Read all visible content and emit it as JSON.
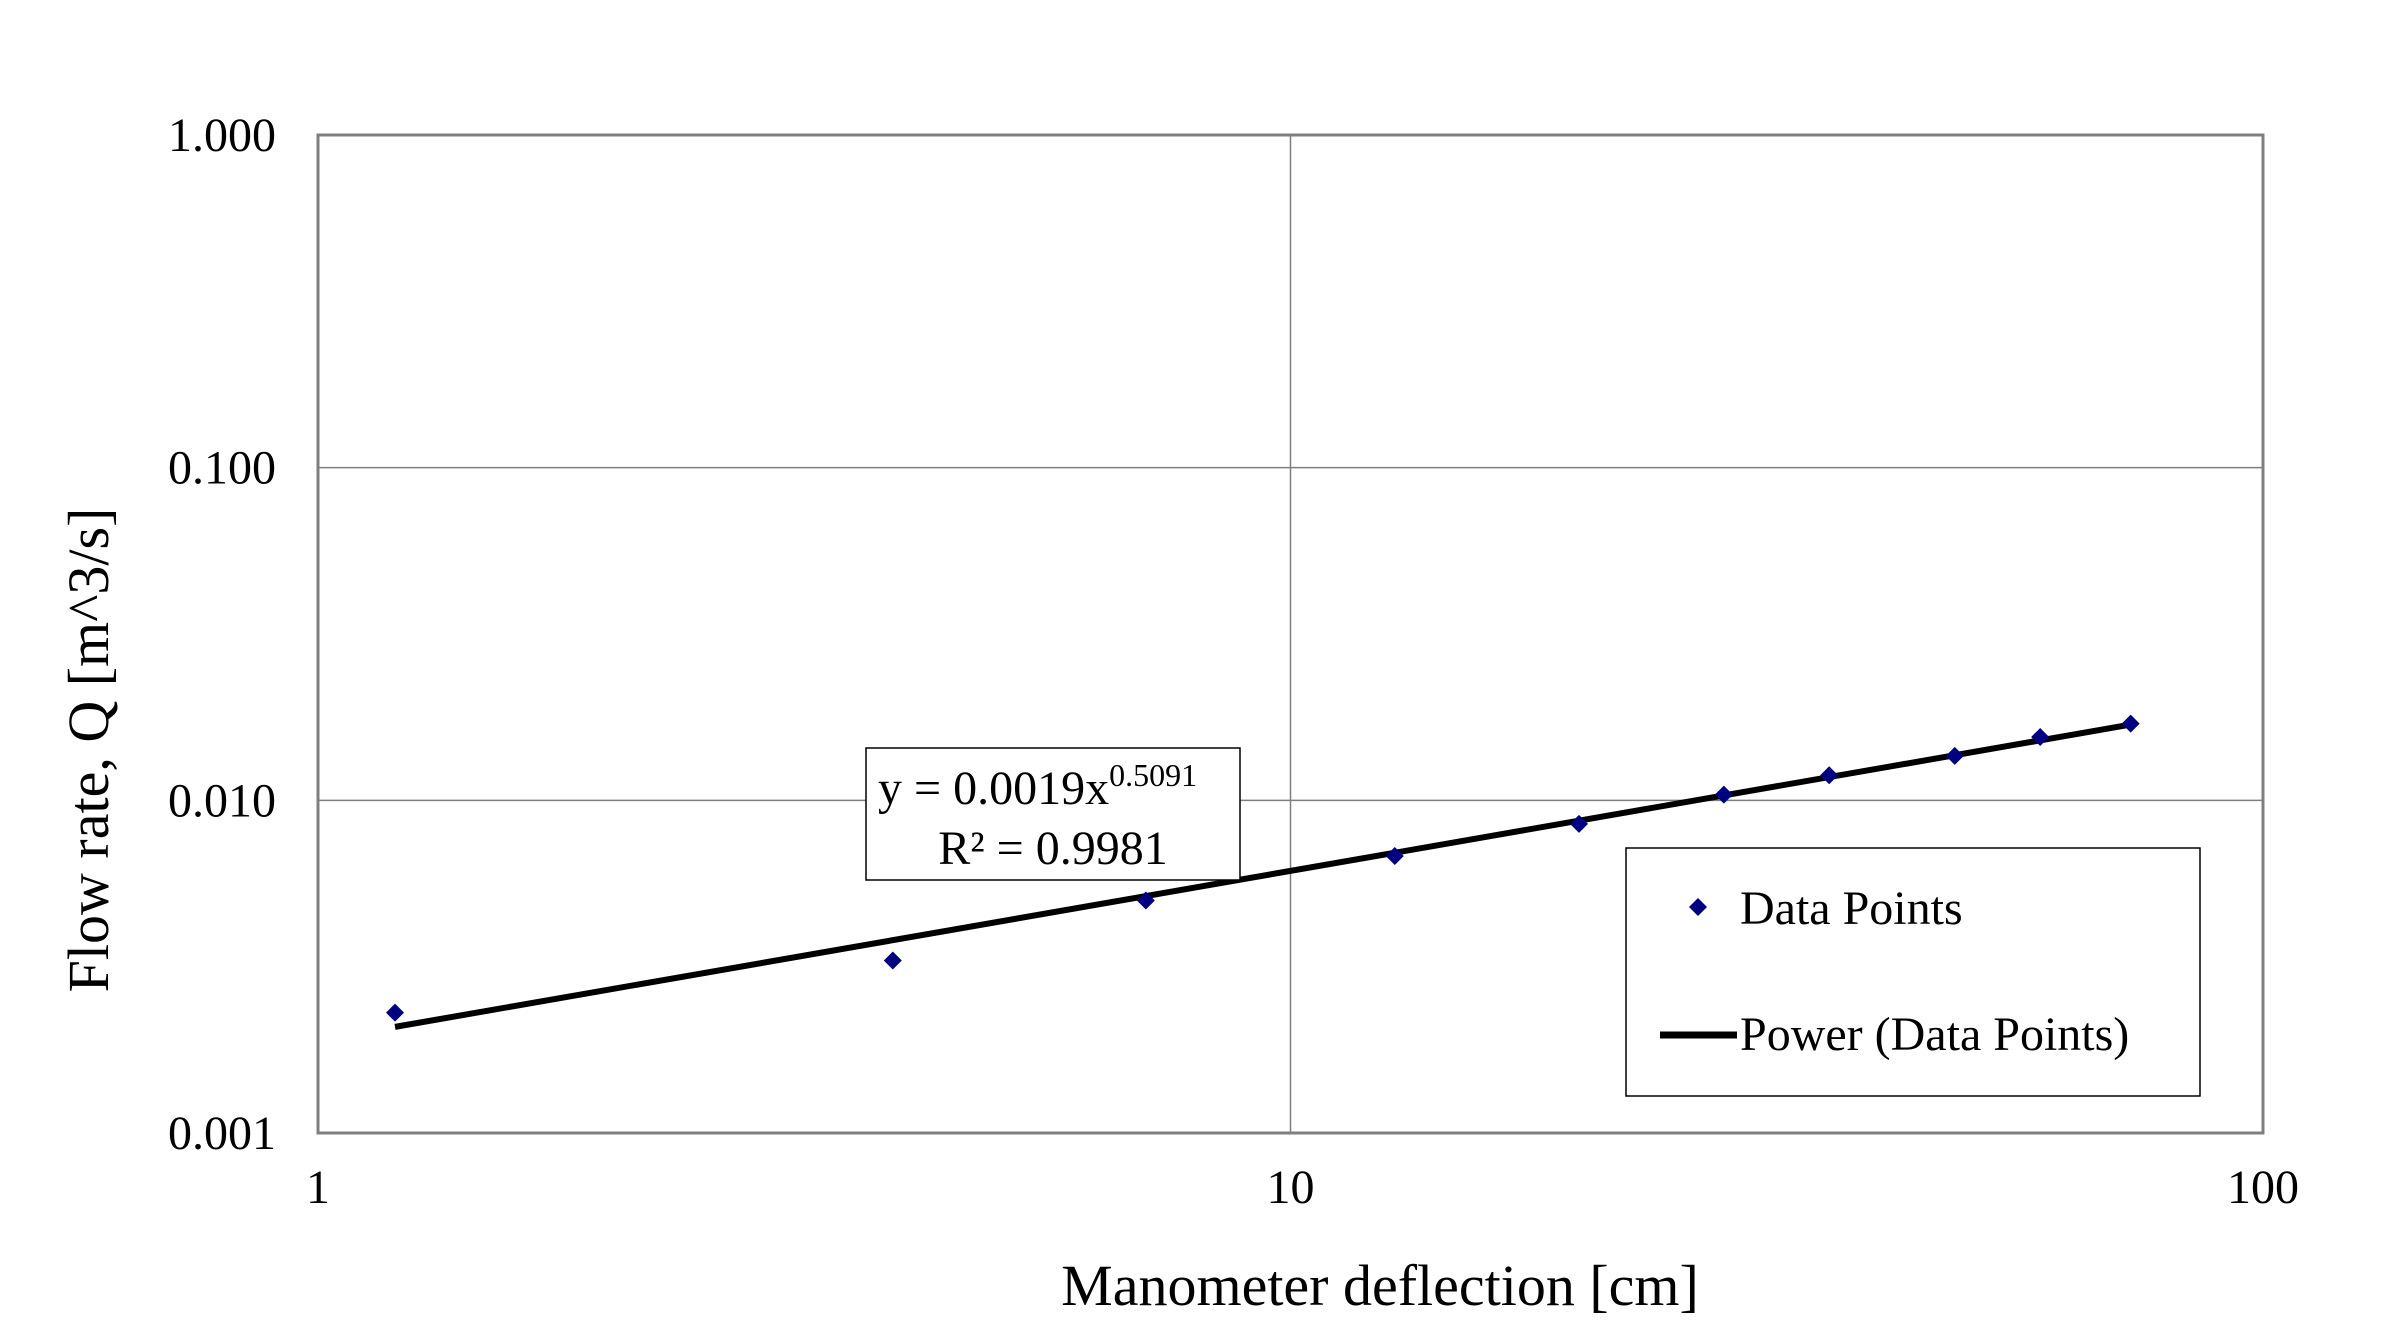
{
  "chart_data": {
    "type": "scatter",
    "xlabel": "Manometer deflection [cm]",
    "ylabel": "Flow rate, Q [m^3/s]",
    "x_scale": "log",
    "y_scale": "log",
    "xlim": [
      1,
      100
    ],
    "ylim": [
      0.001,
      1
    ],
    "x_ticks": [
      1,
      10,
      100
    ],
    "x_tick_labels": [
      "1",
      "10",
      "100"
    ],
    "y_ticks": [
      0.001,
      0.01,
      0.1,
      1
    ],
    "y_tick_labels": [
      "0.001",
      "0.010",
      "0.100",
      "1.000"
    ],
    "grid": true,
    "legend_position": "right-middle",
    "series": [
      {
        "name": "Data Points",
        "type": "scatter",
        "marker": "diamond",
        "color": "#000080",
        "x": [
          1.2,
          3.9,
          7.1,
          12.8,
          19.8,
          27.9,
          35.8,
          48.2,
          59.0,
          73.1
        ],
        "y": [
          0.0023,
          0.0033,
          0.005,
          0.0068,
          0.0085,
          0.0104,
          0.0119,
          0.0136,
          0.0155,
          0.017
        ]
      },
      {
        "name": "Power (Data Points)",
        "type": "trendline",
        "model": "power",
        "coefficient": 0.0019,
        "exponent": 0.5091,
        "x_range": [
          1.2,
          73.1
        ],
        "color": "#000000"
      }
    ],
    "annotation": {
      "equation_prefix": "y = 0.0019x",
      "equation_exponent": "0.5091",
      "r_squared": "R² = 0.9981"
    }
  }
}
